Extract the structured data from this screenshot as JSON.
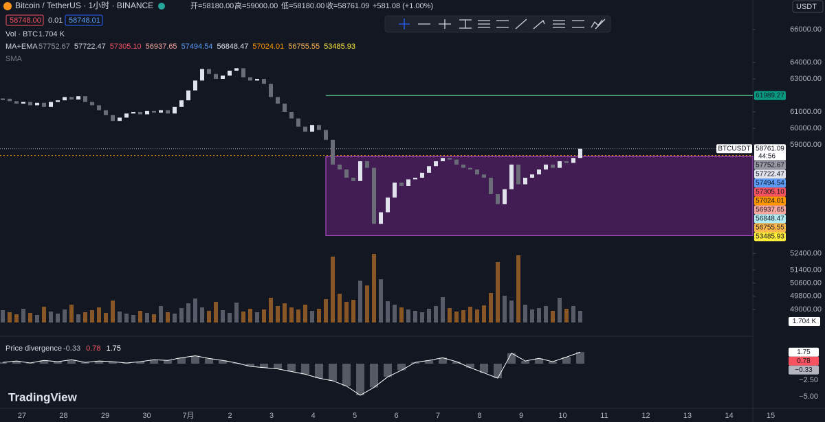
{
  "header": {
    "symbol": "Bitcoin / TetherUS · 1小时 · BINANCE",
    "open": "开=58180.00",
    "high": "高=59000.00",
    "low": "低=58180.00",
    "close": "收=58761.09",
    "change": "+581.08 (+1.00%)",
    "bid": "58748.00",
    "spread": "0.01",
    "ask": "58748.01",
    "currency": "USDT"
  },
  "volume_legend": {
    "label": "Vol · BTC",
    "value": "1.704 K"
  },
  "ma_legend": {
    "label": "MA+EMA",
    "values": [
      {
        "text": "57752.67",
        "color": "#9598a1"
      },
      {
        "text": "57722.47",
        "color": "#d1d4dc"
      },
      {
        "text": "57305.10",
        "color": "#f7525f"
      },
      {
        "text": "56937.65",
        "color": "#f9a8a0"
      },
      {
        "text": "57494.54",
        "color": "#5b9cf6"
      },
      {
        "text": "56848.47",
        "color": "#e0e3eb"
      },
      {
        "text": "57024.01",
        "color": "#ff9800"
      },
      {
        "text": "56755.55",
        "color": "#ffb74d"
      },
      {
        "text": "53485.93",
        "color": "#ffeb3b"
      }
    ]
  },
  "sma_legend": {
    "label": "SMA"
  },
  "price_axis": {
    "ticks": [
      {
        "value": 66000,
        "label": "66000.00"
      },
      {
        "value": 64000,
        "label": "64000.00"
      },
      {
        "value": 63000,
        "label": "63000.00"
      },
      {
        "value": 61000,
        "label": "61000.00"
      },
      {
        "value": 60000,
        "label": "60000.00"
      },
      {
        "value": 59000,
        "label": "59000.00"
      },
      {
        "value": 52400,
        "label": "52400.00"
      },
      {
        "value": 51400,
        "label": "51400.00"
      },
      {
        "value": 50600,
        "label": "50600.00"
      },
      {
        "value": 49800,
        "label": "49800.00"
      },
      {
        "value": 49000,
        "label": "49000.00"
      }
    ]
  },
  "price_tags": [
    {
      "value": 61989.27,
      "label": "61989.27",
      "color": "#089981"
    },
    {
      "value": 58761.09,
      "label": "58761.09",
      "color": "#ffffff",
      "name": "BTCUSDT",
      "countdown": "44:56"
    },
    {
      "value": 57752.67,
      "label": "57752.67",
      "color": "#9598a1"
    },
    {
      "value": 57722.47,
      "label": "57722.47",
      "color": "#e0e3eb"
    },
    {
      "value": 57494.54,
      "label": "57494.54",
      "color": "#5b9cf6"
    },
    {
      "value": 57305.1,
      "label": "57305.10",
      "color": "#f7525f"
    },
    {
      "value": 57024.01,
      "label": "57024.01",
      "color": "#ff9800"
    },
    {
      "value": 56937.65,
      "label": "56937.65",
      "color": "#f9a8a0"
    },
    {
      "value": 56848.47,
      "label": "56848.47",
      "color": "#b2ebf2"
    },
    {
      "value": 56755.55,
      "label": "56755.55",
      "color": "#ffb74d"
    },
    {
      "value": 53485.93,
      "label": "53485.93",
      "color": "#ffeb3b"
    }
  ],
  "levels": {
    "resistance": 61989.27,
    "dotted": 58350,
    "zone_top": 58300,
    "zone_bottom": 53485.93
  },
  "closes": [
    61800,
    61650,
    61500,
    61600,
    61400,
    61550,
    61300,
    61600,
    61700,
    61900,
    61750,
    61950,
    61600,
    61400,
    61100,
    60800,
    60450,
    60650,
    60900,
    61000,
    60850,
    61050,
    60950,
    61100,
    60900,
    61300,
    61700,
    62300,
    62900,
    63600,
    63300,
    63000,
    63200,
    63500,
    63650,
    63100,
    62900,
    63000,
    62700,
    61900,
    61500,
    61000,
    60600,
    60100,
    59800,
    60200,
    59900,
    59300,
    57800,
    57500,
    57000,
    56800,
    58000,
    57600,
    54200,
    54900,
    55800,
    56700,
    56500,
    56900,
    57000,
    57300,
    57700,
    58000,
    58200,
    58100,
    57800,
    57600,
    57500,
    57200,
    57000,
    56000,
    55400,
    56300,
    57800,
    56600,
    57000,
    57200,
    57500,
    57800,
    57600,
    58000,
    57900,
    58200,
    58761.09
  ],
  "volumes": [
    1.8,
    1.5,
    1.2,
    2.0,
    1.4,
    1.1,
    2.3,
    1.6,
    1.3,
    1.9,
    2.6,
    1.2,
    1.5,
    1.8,
    2.2,
    1.4,
    3.2,
    1.6,
    1.3,
    1.1,
    1.7,
    1.4,
    1.2,
    2.4,
    1.5,
    1.3,
    2.1,
    2.8,
    3.5,
    2.2,
    1.7,
    3.0,
    1.8,
    1.4,
    2.9,
    1.6,
    2.0,
    1.5,
    1.9,
    3.6,
    2.4,
    2.8,
    2.2,
    1.9,
    2.6,
    1.7,
    2.0,
    3.4,
    9.6,
    4.2,
    3.0,
    3.3,
    6.1,
    5.4,
    10.0,
    6.3,
    3.1,
    2.6,
    2.2,
    1.9,
    1.7,
    1.5,
    2.0,
    2.4,
    3.7,
    2.1,
    1.6,
    1.8,
    2.3,
    1.9,
    2.5,
    4.3,
    8.8,
    3.9,
    3.2,
    9.8,
    2.6,
    1.9,
    2.1,
    2.4,
    1.7,
    3.6,
    2.0,
    2.4,
    1.7
  ],
  "oscillator": {
    "label": "Price divergence",
    "legend": [
      "-0.33",
      "0.78",
      "1.75"
    ],
    "values": [
      0.2,
      0.4,
      0.1,
      0.5,
      0.3,
      0.6,
      0.2,
      0.4,
      0.3,
      0.1,
      0.3,
      0.6,
      0.5,
      0.9,
      1.2,
      0.8,
      0.5,
      0.1,
      -0.4,
      -0.6,
      -0.8,
      -1.2,
      -1.6,
      -2.2,
      -2.6,
      -3.4,
      -4.8,
      -3.6,
      -2.0,
      -1.0,
      0.2,
      0.5,
      0.9,
      0.3,
      -0.6,
      -1.4,
      -2.2,
      1.6,
      0.4,
      0.8,
      0.3,
      1.0,
      1.75
    ],
    "ticks": [
      {
        "value": -2.5,
        "label": "−2.50"
      },
      {
        "value": -5,
        "label": "−5.00"
      }
    ],
    "tags": [
      {
        "value": 1.75,
        "label": "1.75",
        "color": "#ffffff"
      },
      {
        "value": 0.78,
        "label": "0.78",
        "color": "#f7525f"
      },
      {
        "value": -0.33,
        "label": "−0.33",
        "color": "#b2b5be"
      }
    ]
  },
  "dates": [
    "27",
    "28",
    "29",
    "30",
    "7月",
    "2",
    "3",
    "4",
    "5",
    "6",
    "7",
    "8",
    "9",
    "10",
    "11",
    "12",
    "13",
    "14",
    "15"
  ],
  "logo": "TradingView"
}
